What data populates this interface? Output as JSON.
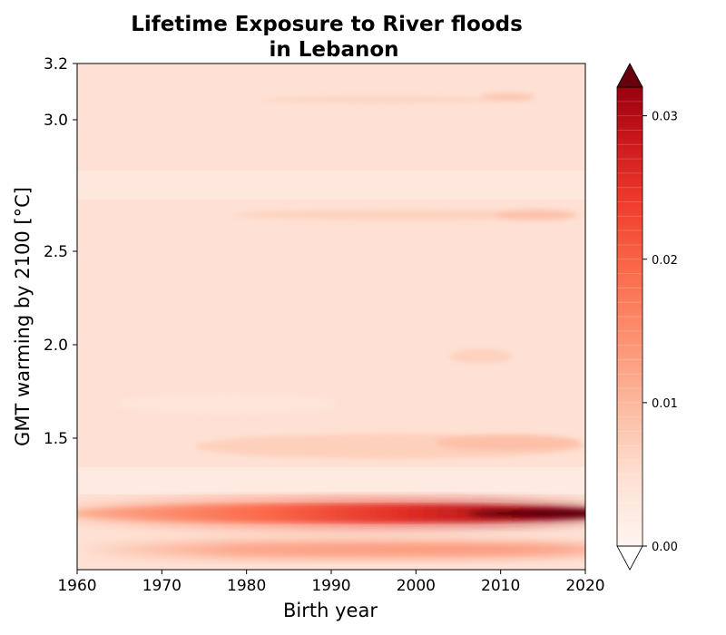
{
  "chart_data": {
    "type": "heatmap",
    "title_line1": "Lifetime Exposure to River floods",
    "title_line2": "in Lebanon",
    "xlabel": "Birth year",
    "ylabel": "GMT warming by 2100 [°C]",
    "xlim": [
      1960,
      2020
    ],
    "ylim": [
      0.6,
      3.2
    ],
    "y_scale": "nonlinear (as printed tick spacing)",
    "x_ticks": [
      {
        "value": 1960,
        "label": "1960"
      },
      {
        "value": 1970,
        "label": "1970"
      },
      {
        "value": 1980,
        "label": "1980"
      },
      {
        "value": 1990,
        "label": "1990"
      },
      {
        "value": 2000,
        "label": "2000"
      },
      {
        "value": 2010,
        "label": "2010"
      },
      {
        "value": 2020,
        "label": "2020"
      }
    ],
    "y_ticks": [
      {
        "value": 1.5,
        "label": "1.5"
      },
      {
        "value": 2.0,
        "label": "2.0"
      },
      {
        "value": 2.5,
        "label": "2.5"
      },
      {
        "value": 3.0,
        "label": "3.0"
      },
      {
        "value": 3.2,
        "label": "3.2"
      }
    ],
    "colorbar": {
      "colormap": "Reds",
      "range": [
        0.0,
        0.032
      ],
      "extend": "both",
      "ticks": [
        {
          "value": 0.0,
          "label": "0.00"
        },
        {
          "value": 0.01,
          "label": "0.01"
        },
        {
          "value": 0.02,
          "label": "0.02"
        },
        {
          "value": 0.03,
          "label": "0.03"
        }
      ]
    },
    "bands": [
      {
        "gmt": 3.05,
        "birth_year_from": 1982,
        "birth_year_to": 2020,
        "value": 0.0035
      },
      {
        "gmt": 2.55,
        "birth_year_from": 1978,
        "birth_year_to": 2020,
        "value": 0.004
      },
      {
        "gmt": 2.0,
        "birth_year_from": 2004,
        "birth_year_to": 2011,
        "value": 0.0038
      },
      {
        "gmt": 1.48,
        "birth_year_from": 1975,
        "birth_year_to": 2020,
        "value": 0.0045
      },
      {
        "gmt": 0.97,
        "birth_year_from": 1960,
        "birth_year_to": 2020,
        "value": 0.03
      },
      {
        "gmt": 0.72,
        "birth_year_from": 1965,
        "birth_year_to": 2020,
        "value": 0.01
      }
    ]
  }
}
